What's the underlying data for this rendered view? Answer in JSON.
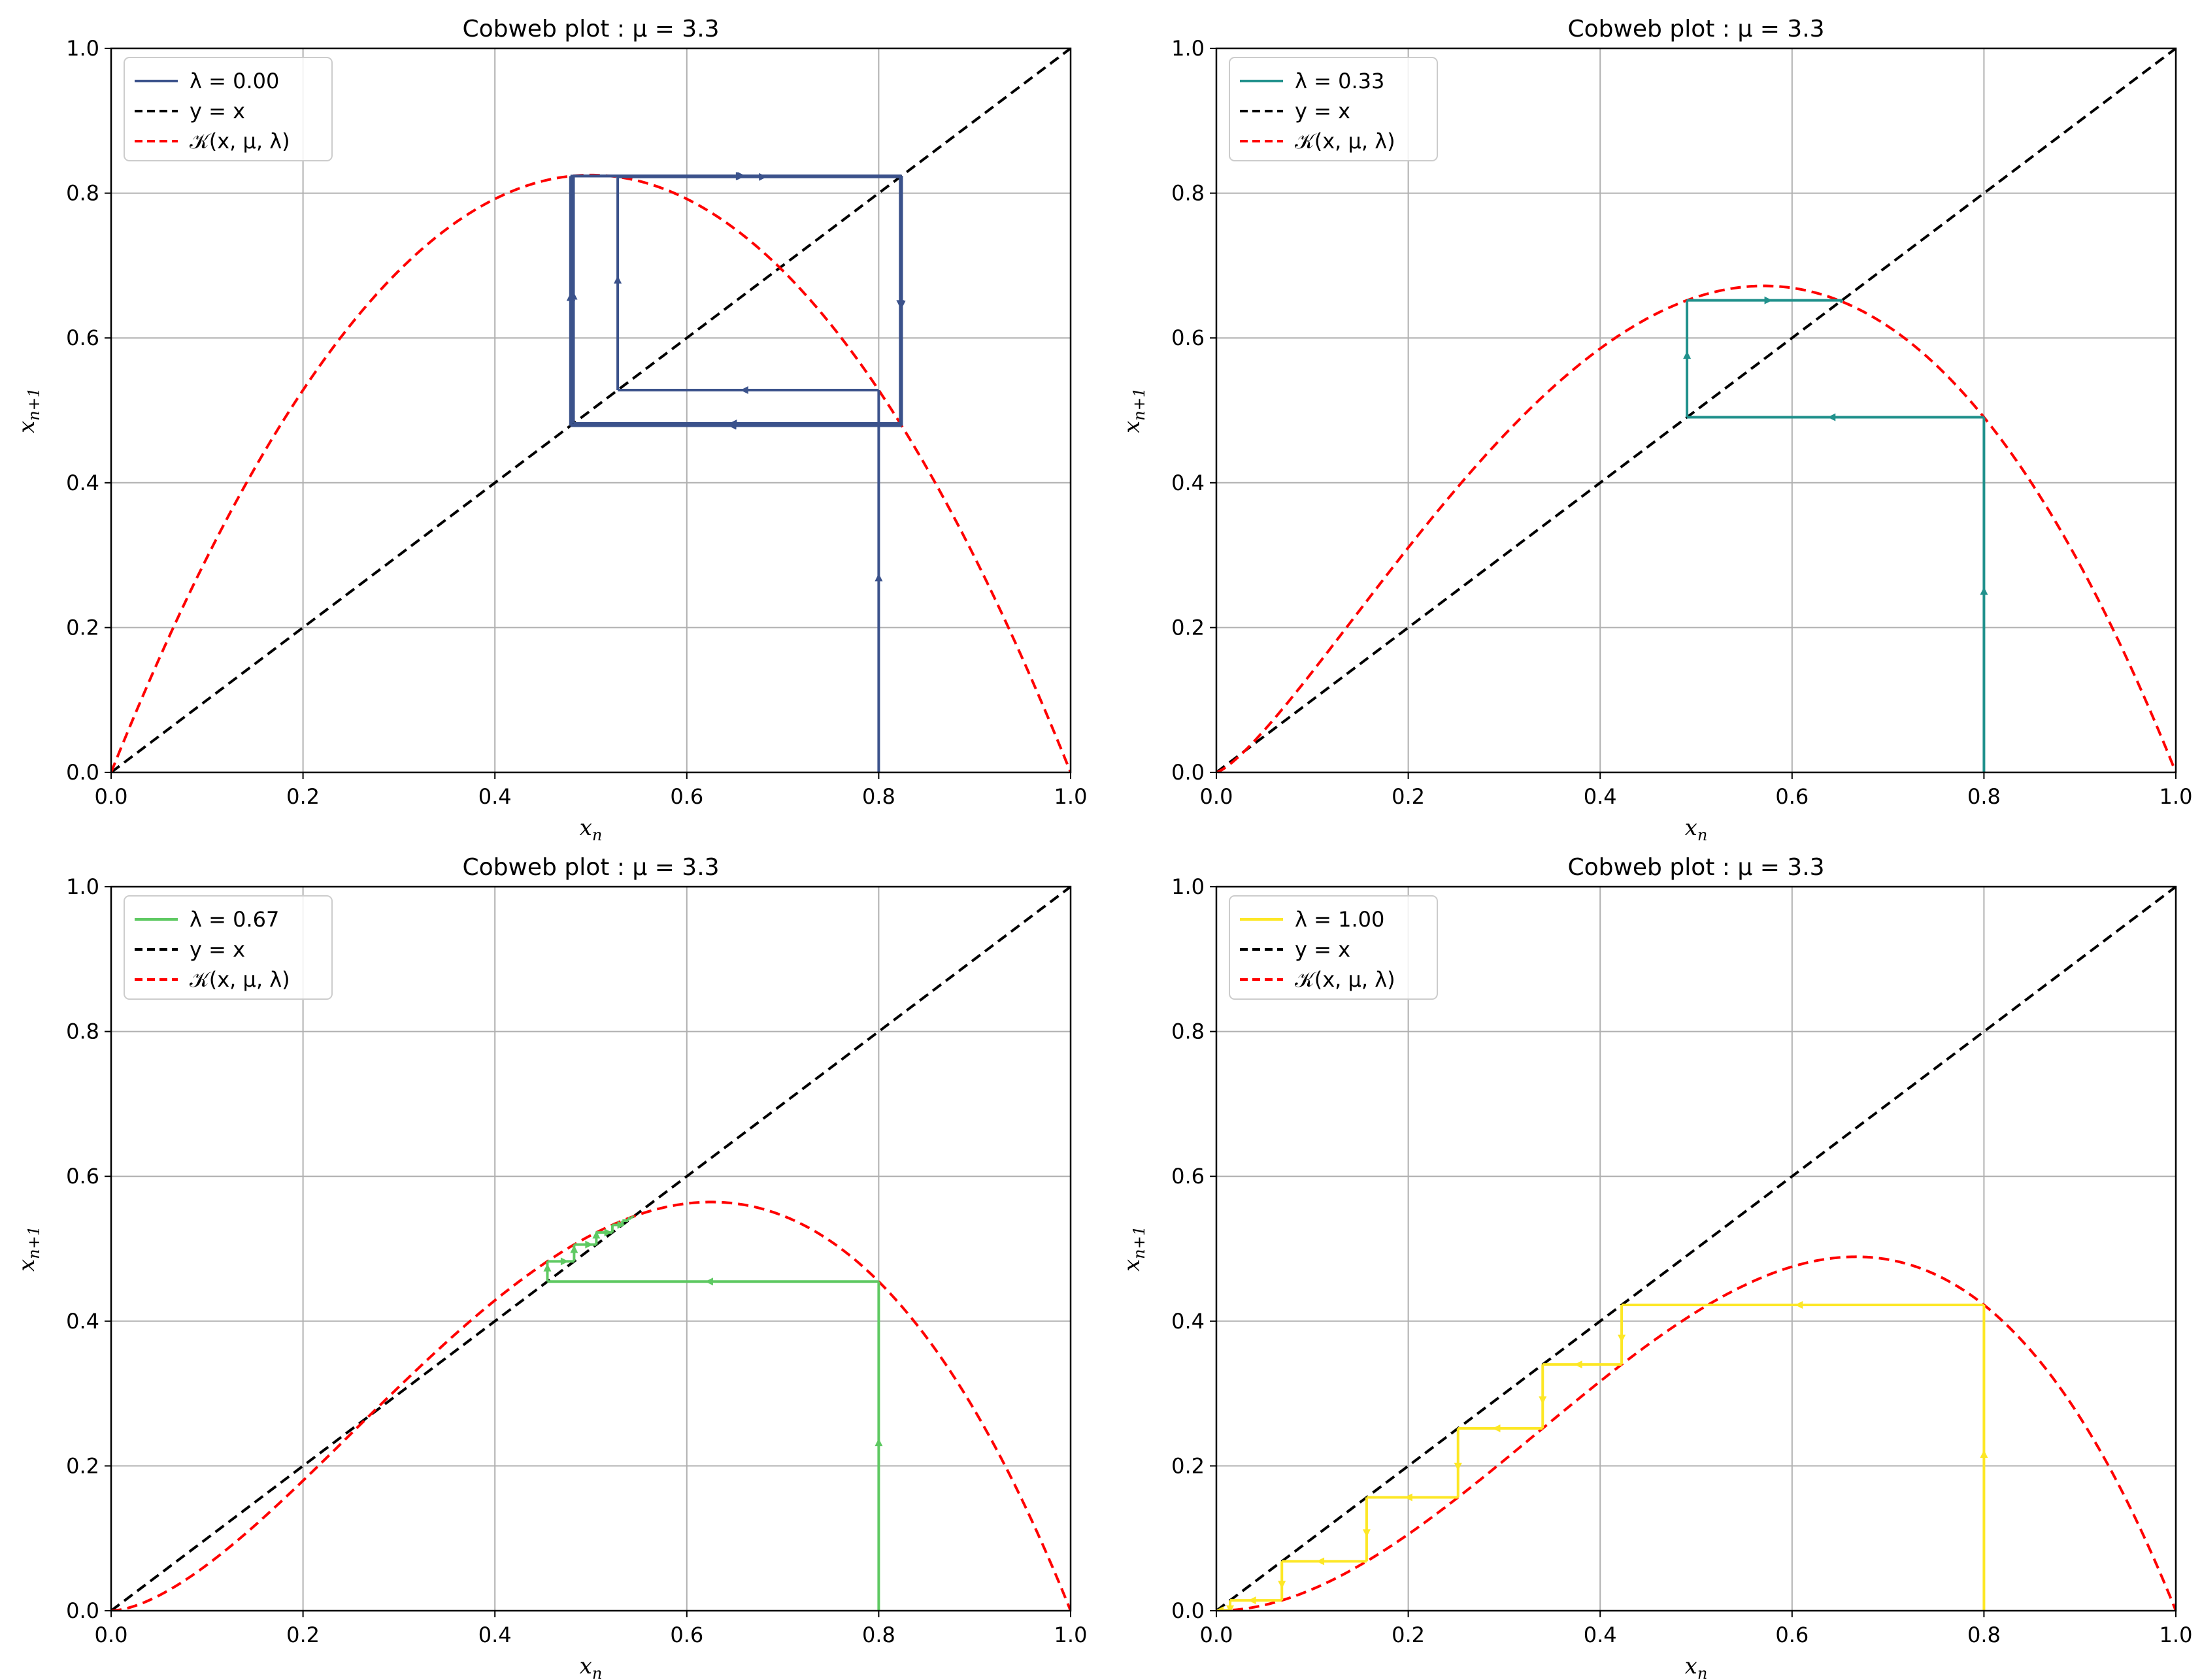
{
  "figure": {
    "colors": {
      "identity": "#000000",
      "map": "#ff0000",
      "grid": "#b0b0b0"
    }
  },
  "chart_data": [
    {
      "type": "line",
      "title": "Cobweb plot : μ = 3.3",
      "xlabel": "x_n",
      "ylabel": "x_{n+1}",
      "xlim": [
        0,
        1
      ],
      "ylim": [
        0,
        1
      ],
      "xticks": [
        "0.0",
        "0.2",
        "0.4",
        "0.6",
        "0.8",
        "1.0"
      ],
      "yticks": [
        "0.0",
        "0.2",
        "0.4",
        "0.6",
        "0.8",
        "1.0"
      ],
      "grid": true,
      "legend_position": "top-left",
      "mu": 3.3,
      "lambda": 0.0,
      "x0": 0.8,
      "iterations": 40,
      "series": [
        {
          "name": "λ = 0.00",
          "kind": "cobweb",
          "color": "#3b528b"
        },
        {
          "name": "y = x",
          "kind": "identity",
          "color": "#000000"
        },
        {
          "name": "𝒦(x, μ, λ)",
          "kind": "map",
          "color": "#ff0000"
        }
      ]
    },
    {
      "type": "line",
      "title": "Cobweb plot : μ = 3.3",
      "xlabel": "x_n",
      "ylabel": "x_{n+1}",
      "xlim": [
        0,
        1
      ],
      "ylim": [
        0,
        1
      ],
      "xticks": [
        "0.0",
        "0.2",
        "0.4",
        "0.6",
        "0.8",
        "1.0"
      ],
      "yticks": [
        "0.0",
        "0.2",
        "0.4",
        "0.6",
        "0.8",
        "1.0"
      ],
      "grid": true,
      "legend_position": "top-left",
      "mu": 3.3,
      "lambda": 0.33,
      "x0": 0.8,
      "iterations": 40,
      "series": [
        {
          "name": "λ = 0.33",
          "kind": "cobweb",
          "color": "#21918c"
        },
        {
          "name": "y = x",
          "kind": "identity",
          "color": "#000000"
        },
        {
          "name": "𝒦(x, μ, λ)",
          "kind": "map",
          "color": "#ff0000"
        }
      ]
    },
    {
      "type": "line",
      "title": "Cobweb plot : μ = 3.3",
      "xlabel": "x_n",
      "ylabel": "x_{n+1}",
      "xlim": [
        0,
        1
      ],
      "ylim": [
        0,
        1
      ],
      "xticks": [
        "0.0",
        "0.2",
        "0.4",
        "0.6",
        "0.8",
        "1.0"
      ],
      "yticks": [
        "0.0",
        "0.2",
        "0.4",
        "0.6",
        "0.8",
        "1.0"
      ],
      "grid": true,
      "legend_position": "top-left",
      "mu": 3.3,
      "lambda": 0.67,
      "x0": 0.8,
      "iterations": 40,
      "series": [
        {
          "name": "λ = 0.67",
          "kind": "cobweb",
          "color": "#5ec962"
        },
        {
          "name": "y = x",
          "kind": "identity",
          "color": "#000000"
        },
        {
          "name": "𝒦(x, μ, λ)",
          "kind": "map",
          "color": "#ff0000"
        }
      ]
    },
    {
      "type": "line",
      "title": "Cobweb plot : μ = 3.3",
      "xlabel": "x_n",
      "ylabel": "x_{n+1}",
      "xlim": [
        0,
        1
      ],
      "ylim": [
        0,
        1
      ],
      "xticks": [
        "0.0",
        "0.2",
        "0.4",
        "0.6",
        "0.8",
        "1.0"
      ],
      "yticks": [
        "0.0",
        "0.2",
        "0.4",
        "0.6",
        "0.8",
        "1.0"
      ],
      "grid": true,
      "legend_position": "top-left",
      "mu": 3.3,
      "lambda": 1.0,
      "x0": 0.8,
      "iterations": 40,
      "series": [
        {
          "name": "λ = 1.00",
          "kind": "cobweb",
          "color": "#fde725"
        },
        {
          "name": "y = x",
          "kind": "identity",
          "color": "#000000"
        },
        {
          "name": "𝒦(x, μ, λ)",
          "kind": "map",
          "color": "#ff0000"
        }
      ]
    }
  ]
}
